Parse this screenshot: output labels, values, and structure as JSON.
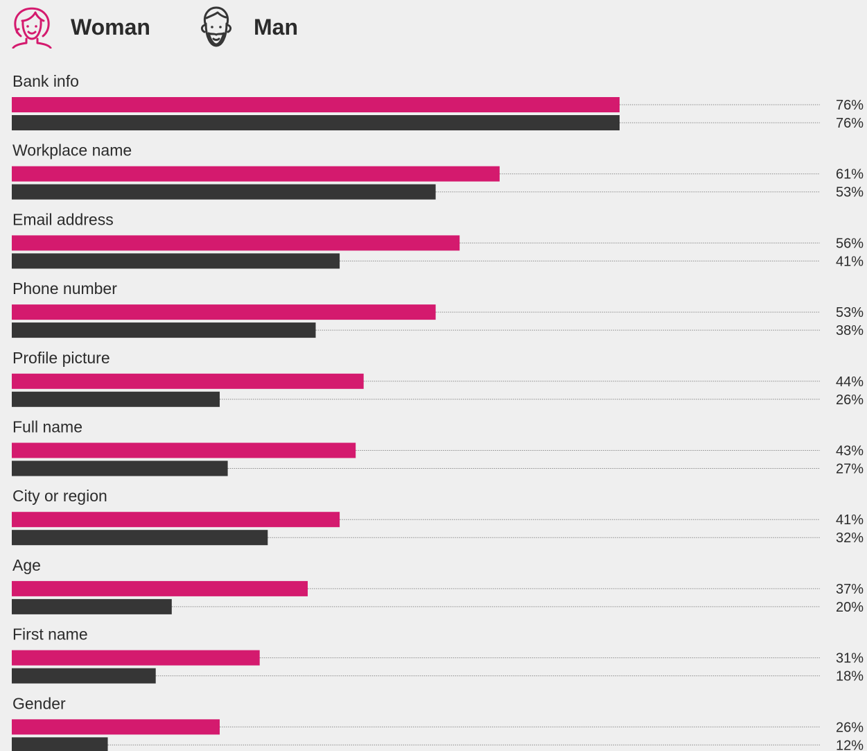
{
  "legend": {
    "woman_label": "Woman",
    "man_label": "Man"
  },
  "colors": {
    "woman": "#d41a6e",
    "man": "#363636",
    "leader": "#8a8a8a",
    "background": "#efefef"
  },
  "chart_data": {
    "type": "bar",
    "orientation": "horizontal",
    "title": "",
    "xlabel": "",
    "ylabel": "",
    "xlim": [
      0,
      100
    ],
    "grid": false,
    "legend_position": "top-left",
    "categories": [
      "Bank info",
      "Workplace name",
      "Email address",
      "Phone number",
      "Profile picture",
      "Full name",
      "City or region",
      "Age",
      "First name",
      "Gender"
    ],
    "series": [
      {
        "name": "Woman",
        "values": [
          76,
          61,
          56,
          53,
          44,
          43,
          41,
          37,
          31,
          26
        ],
        "labels": [
          "76%",
          "61%",
          "56%",
          "53%",
          "44%",
          "43%",
          "41%",
          "37%",
          "31%",
          "26%"
        ]
      },
      {
        "name": "Man",
        "values": [
          76,
          53,
          41,
          38,
          26,
          27,
          32,
          20,
          18,
          12
        ],
        "labels": [
          "76%",
          "53%",
          "41%",
          "38%",
          "26%",
          "27%",
          "32%",
          "20%",
          "18%",
          "12%"
        ]
      }
    ]
  }
}
